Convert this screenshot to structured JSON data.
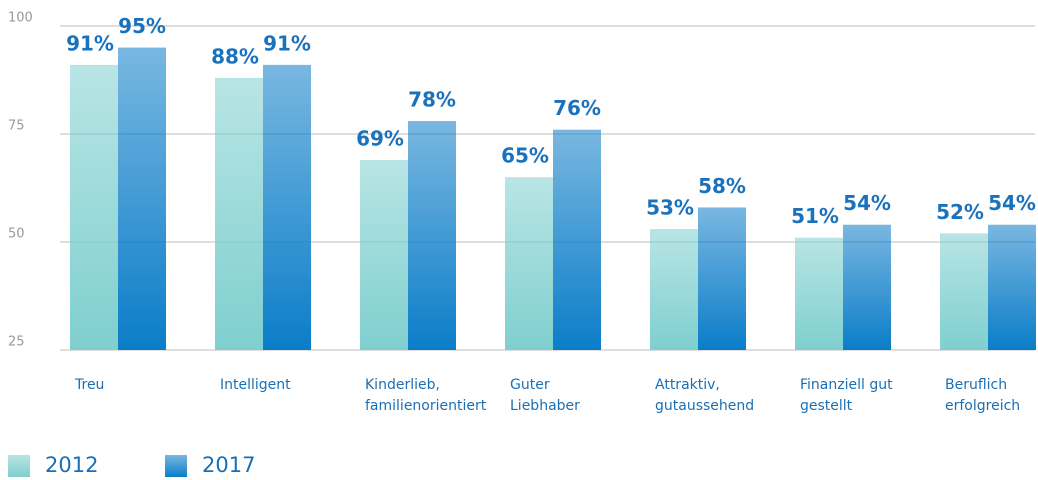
{
  "chart_data": {
    "type": "bar",
    "categories": [
      [
        "Treu"
      ],
      [
        "Intelligent"
      ],
      [
        "Kinderlieb,",
        "familienorientiert"
      ],
      [
        "Guter",
        "Liebhaber"
      ],
      [
        "Attraktiv,",
        "gutaussehend"
      ],
      [
        "Finanziell gut",
        "gestellt"
      ],
      [
        "Beruflich",
        "erfolgreich"
      ]
    ],
    "series": [
      {
        "name": "2012",
        "color": "#7fcfcf",
        "values": [
          91,
          88,
          69,
          65,
          53,
          51,
          52
        ],
        "value_labels": [
          "91%",
          "88%",
          "69%",
          "65%",
          "53%",
          "51%",
          "52%"
        ]
      },
      {
        "name": "2017",
        "color": "#0b7dc8",
        "values": [
          95,
          91,
          78,
          76,
          58,
          54,
          54
        ],
        "value_labels": [
          "95%",
          "91%",
          "78%",
          "76%",
          "58%",
          "54%",
          "54%"
        ]
      }
    ],
    "ylim": [
      25,
      100
    ],
    "yticks": [
      100,
      75,
      50,
      25
    ],
    "grid": true
  }
}
